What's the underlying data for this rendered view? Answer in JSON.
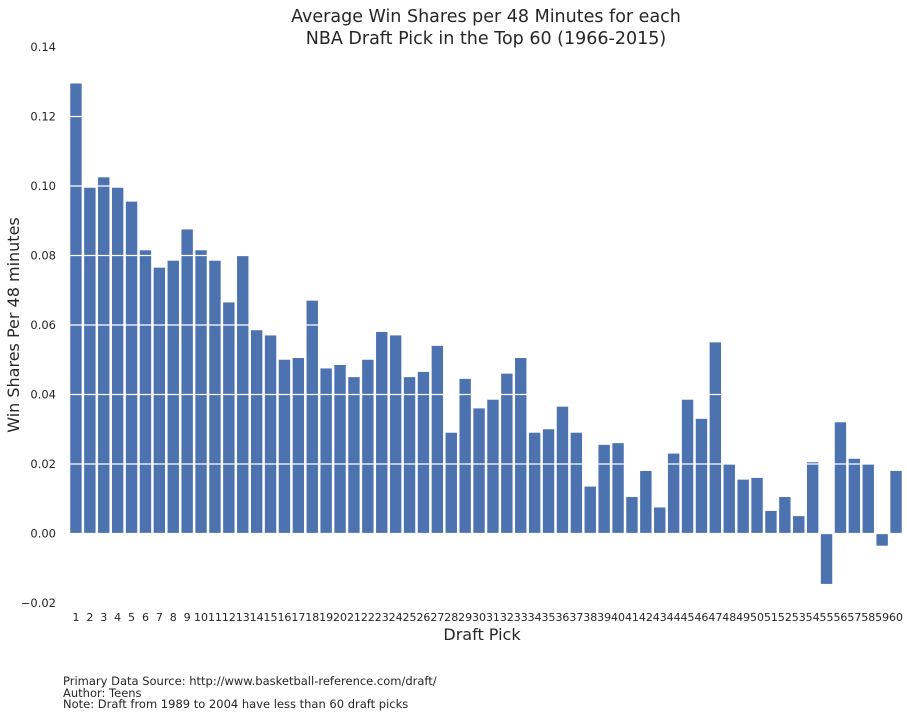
{
  "chart_data": {
    "type": "bar",
    "title": "Average Win Shares per 48 Minutes for each\nNBA Draft Pick in the Top 60 (1966-2015)",
    "xlabel": "Draft Pick",
    "ylabel": "Win Shares Per 48 minutes",
    "ylim": [
      -0.02,
      0.14
    ],
    "yticks": [
      "−0.02",
      "0.00",
      "0.02",
      "0.04",
      "0.06",
      "0.08",
      "0.10",
      "0.12",
      "0.14"
    ],
    "grid": true,
    "bar_color": "#4c72b0",
    "categories": [
      "1",
      "2",
      "3",
      "4",
      "5",
      "6",
      "7",
      "8",
      "9",
      "10",
      "11",
      "12",
      "13",
      "14",
      "15",
      "16",
      "17",
      "18",
      "19",
      "20",
      "21",
      "22",
      "23",
      "24",
      "25",
      "26",
      "27",
      "28",
      "29",
      "30",
      "31",
      "32",
      "33",
      "34",
      "35",
      "36",
      "37",
      "38",
      "39",
      "40",
      "41",
      "42",
      "43",
      "44",
      "45",
      "46",
      "47",
      "48",
      "49",
      "50",
      "51",
      "52",
      "53",
      "54",
      "55",
      "56",
      "57",
      "58",
      "59",
      "60"
    ],
    "values": [
      0.1295,
      0.0995,
      0.1025,
      0.0995,
      0.0955,
      0.0815,
      0.0765,
      0.0785,
      0.0875,
      0.0815,
      0.0785,
      0.0665,
      0.08,
      0.0585,
      0.057,
      0.05,
      0.0505,
      0.067,
      0.0475,
      0.0485,
      0.045,
      0.05,
      0.058,
      0.057,
      0.045,
      0.0465,
      0.054,
      0.029,
      0.0445,
      0.036,
      0.0385,
      0.046,
      0.0505,
      0.029,
      0.03,
      0.0365,
      0.029,
      0.0135,
      0.0255,
      0.026,
      0.0105,
      0.018,
      0.0075,
      0.023,
      0.0385,
      0.033,
      0.055,
      0.02,
      0.0155,
      0.016,
      0.0065,
      0.0105,
      0.005,
      0.0205,
      -0.0145,
      0.032,
      0.0215,
      0.02,
      -0.0035,
      0.018
    ]
  },
  "footer": {
    "source": "Primary Data Source: http://www.basketball-reference.com/draft/",
    "author": "Author: Teens",
    "note": "Note: Draft from 1989 to 2004 have less than 60 draft picks"
  }
}
